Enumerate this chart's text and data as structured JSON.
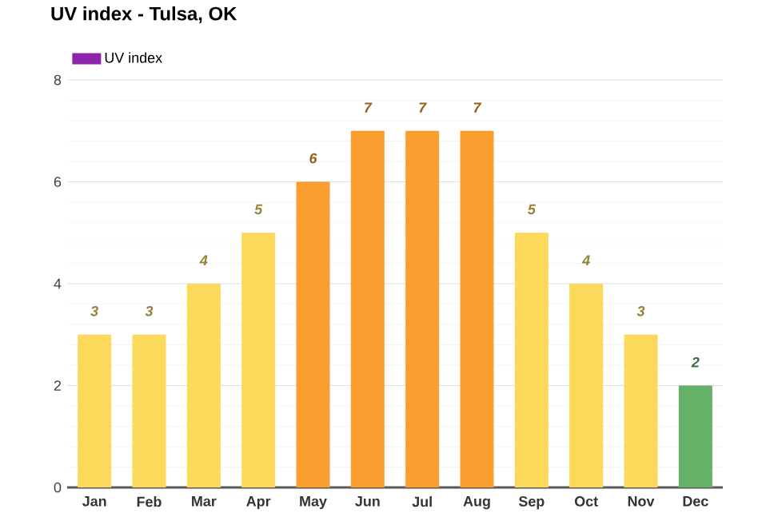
{
  "chart_data": {
    "type": "bar",
    "title": "UV index - Tulsa, OK",
    "categories": [
      "Jan",
      "Feb",
      "Mar",
      "Apr",
      "May",
      "Jun",
      "Jul",
      "Aug",
      "Sep",
      "Oct",
      "Nov",
      "Dec"
    ],
    "series": [
      {
        "name": "UV index",
        "color": "#8e24aa",
        "colors": [
          "#fcd95a",
          "#fcd95a",
          "#fcd95a",
          "#fcd95a",
          "#fa9e2f",
          "#fa9e2f",
          "#fa9e2f",
          "#fa9e2f",
          "#fcd95a",
          "#fcd95a",
          "#fcd95a",
          "#65b168"
        ],
        "values": [
          3,
          3,
          4,
          5,
          6,
          7,
          7,
          7,
          5,
          4,
          3,
          2
        ]
      }
    ],
    "ylim": [
      0,
      8
    ],
    "yticks": [
      0,
      2,
      4,
      6,
      8
    ],
    "grid": "y",
    "legend": "top left",
    "data_labels": true
  }
}
